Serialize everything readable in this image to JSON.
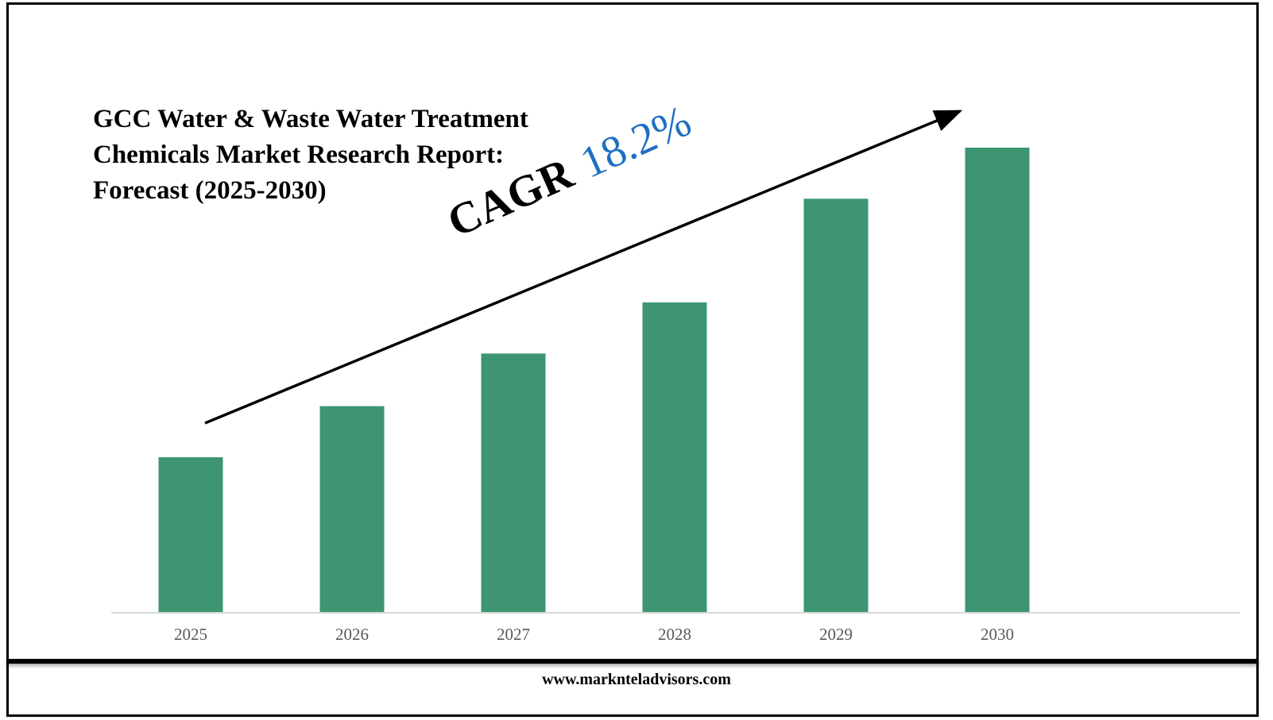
{
  "chart_data": {
    "type": "bar",
    "title": "GCC Water & Waste Water Treatment Chemicals Market Research Report: Forecast (2025-2030)",
    "categories": [
      "2025",
      "2026",
      "2027",
      "2028",
      "2029",
      "2030"
    ],
    "values": [
      1.0,
      1.33,
      1.67,
      2.0,
      2.67,
      3.0
    ],
    "xlabel": "",
    "ylabel": "",
    "ylim": [
      0,
      3.0
    ],
    "grid": false,
    "bar_color": "#3d9671",
    "annotation": {
      "label": "CAGR",
      "value": "18.2%",
      "label_color": "#000000",
      "value_color": "#1f6fc2"
    }
  },
  "footer": {
    "url": "www.marknteladvisors.com"
  }
}
